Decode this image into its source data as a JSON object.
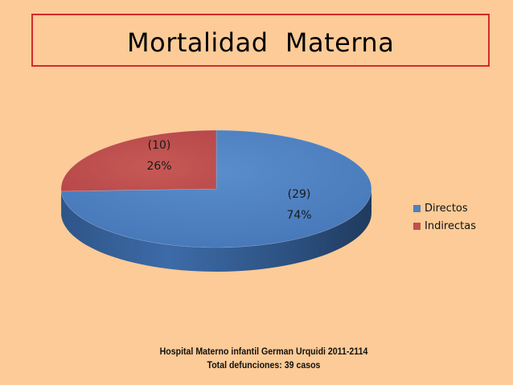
{
  "slide": {
    "title": "Mortalidad  Materna",
    "footnote_line1": "Hospital Materno infantil German Urquidi 2011-2114",
    "footnote_line2": "Total defunciones: 39 casos"
  },
  "chart_data": {
    "type": "pie",
    "style": "3d",
    "categories": [
      "Directos",
      "Indirectas"
    ],
    "values": [
      29,
      10
    ],
    "percent_labels": [
      "74%",
      "26%"
    ],
    "count_labels": [
      "(29)",
      "(10)"
    ],
    "colors": [
      "#4F81BD",
      "#C0504D"
    ],
    "legend_position": "right",
    "title": ""
  }
}
